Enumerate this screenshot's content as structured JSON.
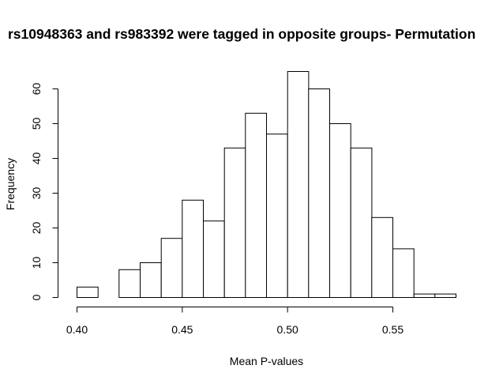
{
  "chart_data": {
    "type": "bar",
    "title": "rs10948363 and rs983392 were tagged in opposite groups- Permutation",
    "xlabel": "Mean P-values",
    "ylabel": "Frequency",
    "bin_edges": [
      0.4,
      0.41,
      0.42,
      0.43,
      0.44,
      0.45,
      0.46,
      0.47,
      0.48,
      0.49,
      0.5,
      0.51,
      0.52,
      0.53,
      0.54,
      0.55,
      0.56,
      0.57,
      0.58
    ],
    "values": [
      3,
      0,
      8,
      10,
      17,
      28,
      22,
      43,
      53,
      47,
      65,
      60,
      50,
      43,
      23,
      14,
      1,
      1
    ],
    "xlim": [
      0.4,
      0.58
    ],
    "ylim": [
      0,
      67
    ],
    "x_ticks": [
      0.4,
      0.45,
      0.5,
      0.55
    ],
    "x_tick_labels": [
      "0.40",
      "0.45",
      "0.50",
      "0.55"
    ],
    "y_ticks": [
      0,
      10,
      20,
      30,
      40,
      50,
      60
    ],
    "y_tick_labels": [
      "0",
      "10",
      "20",
      "30",
      "40",
      "50",
      "60"
    ],
    "grid": false,
    "legend": "none"
  }
}
